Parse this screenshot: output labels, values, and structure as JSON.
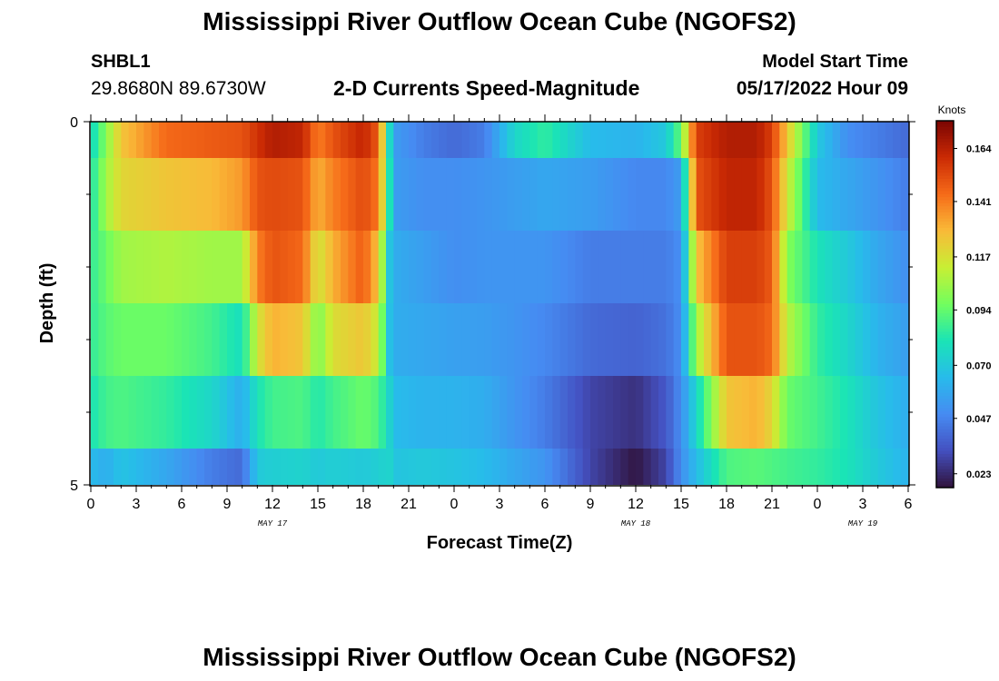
{
  "title": "Mississippi River Outflow Ocean Cube (NGOFS2)",
  "title_repeat": "Mississippi River Outflow Ocean Cube (NGOFS2)",
  "station": {
    "id": "SHBL1",
    "coords": "29.8680N  89.6730W"
  },
  "plot_title": "2-D Currents Speed-Magnitude",
  "model_start": {
    "label": "Model Start Time",
    "value": "05/17/2022 Hour 09"
  },
  "chart_data": {
    "type": "heatmap",
    "title": "2-D Currents Speed-Magnitude",
    "xlabel": "Forecast Time(Z)",
    "ylabel": "Depth (ft)",
    "x_ticks": [
      "0",
      "3",
      "6",
      "9",
      "12",
      "15",
      "18",
      "21",
      "0",
      "3",
      "6",
      "9",
      "12",
      "15",
      "18",
      "21",
      "0",
      "3",
      "6"
    ],
    "date_labels": [
      {
        "label": "MAY 17",
        "at_hour": 12
      },
      {
        "label": "MAY 18",
        "at_hour": 36
      },
      {
        "label": "MAY 19",
        "at_hour": 51
      }
    ],
    "x_range_hours": [
      0,
      54
    ],
    "y_ticks": [
      "0",
      "5"
    ],
    "y_range_ft": [
      0,
      5
    ],
    "colorbar": {
      "unit": "Knots",
      "ticks": [
        "0.164",
        "0.141",
        "0.117",
        "0.094",
        "0.070",
        "0.047",
        "0.023"
      ],
      "range": [
        0.017,
        0.176
      ],
      "colormap": "turbo"
    },
    "depth_layers_ft": [
      0.25,
      1.25,
      2.25,
      3.25,
      4.25,
      4.75
    ],
    "keyframes": [
      {
        "hour": 0,
        "values": [
          0.075,
          0.08,
          0.085,
          0.085,
          0.08,
          0.065
        ]
      },
      {
        "hour": 1,
        "values": [
          0.1,
          0.105,
          0.095,
          0.092,
          0.088,
          0.06
        ]
      },
      {
        "hour": 2,
        "values": [
          0.125,
          0.12,
          0.105,
          0.095,
          0.09,
          0.068
        ]
      },
      {
        "hour": 5,
        "values": [
          0.145,
          0.125,
          0.108,
          0.095,
          0.085,
          0.058
        ]
      },
      {
        "hour": 8,
        "values": [
          0.148,
          0.128,
          0.105,
          0.088,
          0.075,
          0.045
        ]
      },
      {
        "hour": 10,
        "values": [
          0.15,
          0.135,
          0.105,
          0.078,
          0.06,
          0.04
        ]
      },
      {
        "hour": 11,
        "values": [
          0.158,
          0.15,
          0.14,
          0.115,
          0.08,
          0.07
        ]
      },
      {
        "hour": 12,
        "values": [
          0.165,
          0.152,
          0.15,
          0.13,
          0.088,
          0.072
        ]
      },
      {
        "hour": 14,
        "values": [
          0.162,
          0.15,
          0.145,
          0.125,
          0.09,
          0.074
        ]
      },
      {
        "hour": 15,
        "values": [
          0.14,
          0.13,
          0.115,
          0.098,
          0.082,
          0.07
        ]
      },
      {
        "hour": 16,
        "values": [
          0.15,
          0.14,
          0.13,
          0.118,
          0.088,
          0.072
        ]
      },
      {
        "hour": 18,
        "values": [
          0.162,
          0.152,
          0.148,
          0.125,
          0.095,
          0.07
        ]
      },
      {
        "hour": 19,
        "values": [
          0.148,
          0.142,
          0.125,
          0.112,
          0.09,
          0.072
        ]
      },
      {
        "hour": 19.7,
        "values": [
          0.08,
          0.085,
          0.07,
          0.068,
          0.075,
          0.075
        ]
      },
      {
        "hour": 20,
        "values": [
          0.055,
          0.055,
          0.06,
          0.06,
          0.065,
          0.068
        ]
      },
      {
        "hour": 22,
        "values": [
          0.045,
          0.05,
          0.055,
          0.058,
          0.062,
          0.07
        ]
      },
      {
        "hour": 24,
        "values": [
          0.04,
          0.05,
          0.05,
          0.056,
          0.062,
          0.068
        ]
      },
      {
        "hour": 26,
        "values": [
          0.045,
          0.052,
          0.052,
          0.055,
          0.06,
          0.065
        ]
      },
      {
        "hour": 28,
        "values": [
          0.075,
          0.055,
          0.052,
          0.052,
          0.052,
          0.058
        ]
      },
      {
        "hour": 30,
        "values": [
          0.085,
          0.058,
          0.052,
          0.048,
          0.045,
          0.052
        ]
      },
      {
        "hour": 33,
        "values": [
          0.065,
          0.055,
          0.045,
          0.04,
          0.03,
          0.03
        ]
      },
      {
        "hour": 36,
        "values": [
          0.062,
          0.048,
          0.045,
          0.038,
          0.025,
          0.018
        ]
      },
      {
        "hour": 38,
        "values": [
          0.07,
          0.048,
          0.045,
          0.042,
          0.035,
          0.03
        ]
      },
      {
        "hour": 39,
        "values": [
          0.095,
          0.055,
          0.05,
          0.05,
          0.05,
          0.05
        ]
      },
      {
        "hour": 40,
        "values": [
          0.155,
          0.15,
          0.125,
          0.105,
          0.075,
          0.065
        ]
      },
      {
        "hour": 42,
        "values": [
          0.165,
          0.162,
          0.155,
          0.15,
          0.125,
          0.09
        ]
      },
      {
        "hour": 44,
        "values": [
          0.165,
          0.162,
          0.155,
          0.15,
          0.13,
          0.092
        ]
      },
      {
        "hour": 45,
        "values": [
          0.155,
          0.15,
          0.148,
          0.145,
          0.12,
          0.09
        ]
      },
      {
        "hour": 46,
        "values": [
          0.125,
          0.115,
          0.1,
          0.11,
          0.095,
          0.088
        ]
      },
      {
        "hour": 48,
        "values": [
          0.07,
          0.065,
          0.08,
          0.085,
          0.088,
          0.085
        ]
      },
      {
        "hour": 50,
        "values": [
          0.05,
          0.058,
          0.07,
          0.075,
          0.08,
          0.08
        ]
      },
      {
        "hour": 52,
        "values": [
          0.045,
          0.052,
          0.058,
          0.062,
          0.068,
          0.07
        ]
      },
      {
        "hour": 54,
        "values": [
          0.04,
          0.045,
          0.05,
          0.055,
          0.06,
          0.062
        ]
      }
    ]
  }
}
